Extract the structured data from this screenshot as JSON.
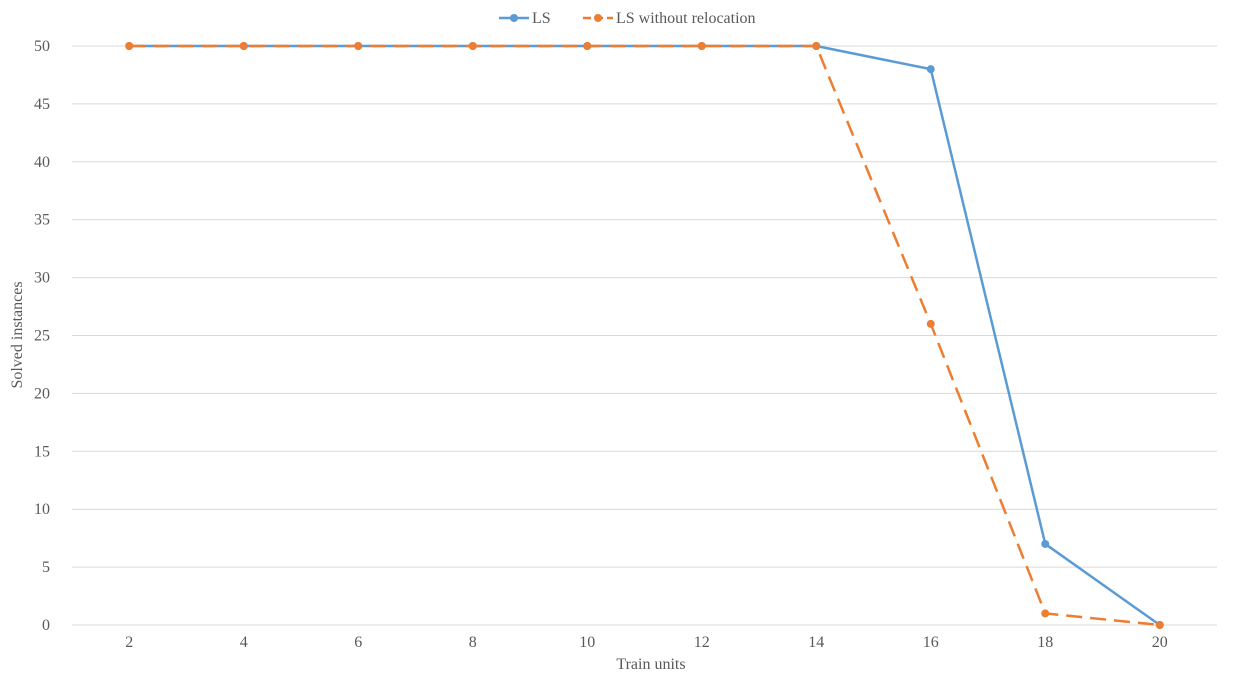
{
  "chart_data": {
    "type": "line",
    "title": "",
    "xlabel": "Train units",
    "ylabel": "Solved instances",
    "categories": [
      "2",
      "4",
      "6",
      "8",
      "10",
      "12",
      "14",
      "16",
      "18",
      "20"
    ],
    "ylim": [
      0,
      50
    ],
    "yticks": [
      "0",
      "5",
      "10",
      "15",
      "20",
      "25",
      "30",
      "35",
      "40",
      "45",
      "50"
    ],
    "grid": "horizontal",
    "legend_position": "top",
    "series": [
      {
        "name": "LS",
        "color": "#5B9BD5",
        "dash": "solid",
        "values": [
          50,
          50,
          50,
          50,
          50,
          50,
          50,
          48,
          7,
          0
        ]
      },
      {
        "name": "LS without relocation",
        "color": "#ED7D31",
        "dash": "dashed",
        "values": [
          50,
          50,
          50,
          50,
          50,
          50,
          50,
          26,
          1,
          0
        ]
      }
    ]
  }
}
